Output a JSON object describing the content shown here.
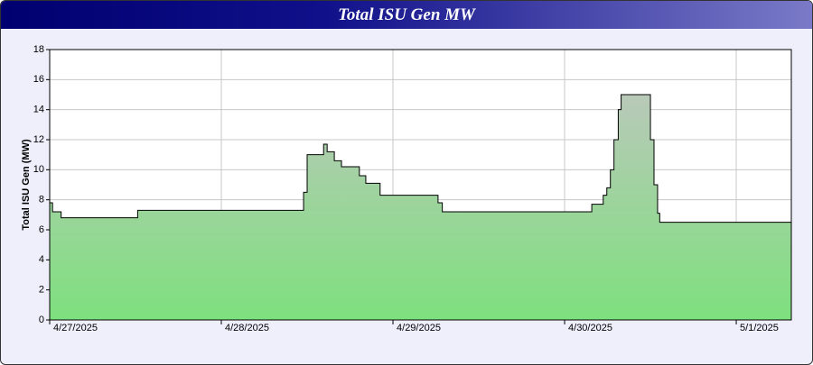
{
  "chart_data": {
    "type": "area",
    "title": "Total ISU Gen MW",
    "y_label": "Total ISU Gen (MW)",
    "step": true,
    "x": [
      0,
      0.4,
      1.6,
      12.3,
      35.5,
      36.0,
      37.0,
      38.3,
      38.8,
      39.8,
      40.8,
      43.3,
      44.2,
      46.2,
      54.3,
      54.9,
      75.8,
      77.4,
      77.9,
      78.4,
      78.9,
      79.5,
      79.9,
      84.0,
      84.5,
      85.0,
      85.3,
      89.6,
      103.7
    ],
    "values": [
      7.8,
      7.2,
      6.8,
      7.3,
      8.5,
      11,
      11,
      11.7,
      11.2,
      10.6,
      10.2,
      9.6,
      9.1,
      8.3,
      7.8,
      7.2,
      7.7,
      8.3,
      8.8,
      10,
      12,
      14,
      15,
      12,
      9,
      7.1,
      6.5,
      6.5,
      6.5
    ],
    "fill_bottom_color": "#7ee07e",
    "fill_top_color": "#c4c4c4",
    "line_color": "#000000",
    "xlim": [
      0,
      103.7
    ],
    "xticks": [
      {
        "value": 0,
        "label": "4/27/2025"
      },
      {
        "value": 24,
        "label": "4/28/2025"
      },
      {
        "value": 48,
        "label": "4/29/2025"
      },
      {
        "value": 72,
        "label": "4/30/2025"
      },
      {
        "value": 96,
        "label": "5/1/2025"
      }
    ],
    "ylim": [
      0,
      18
    ],
    "yticks": [
      0,
      2,
      4,
      6,
      8,
      10,
      12,
      14,
      16,
      18
    ],
    "grid": true
  }
}
